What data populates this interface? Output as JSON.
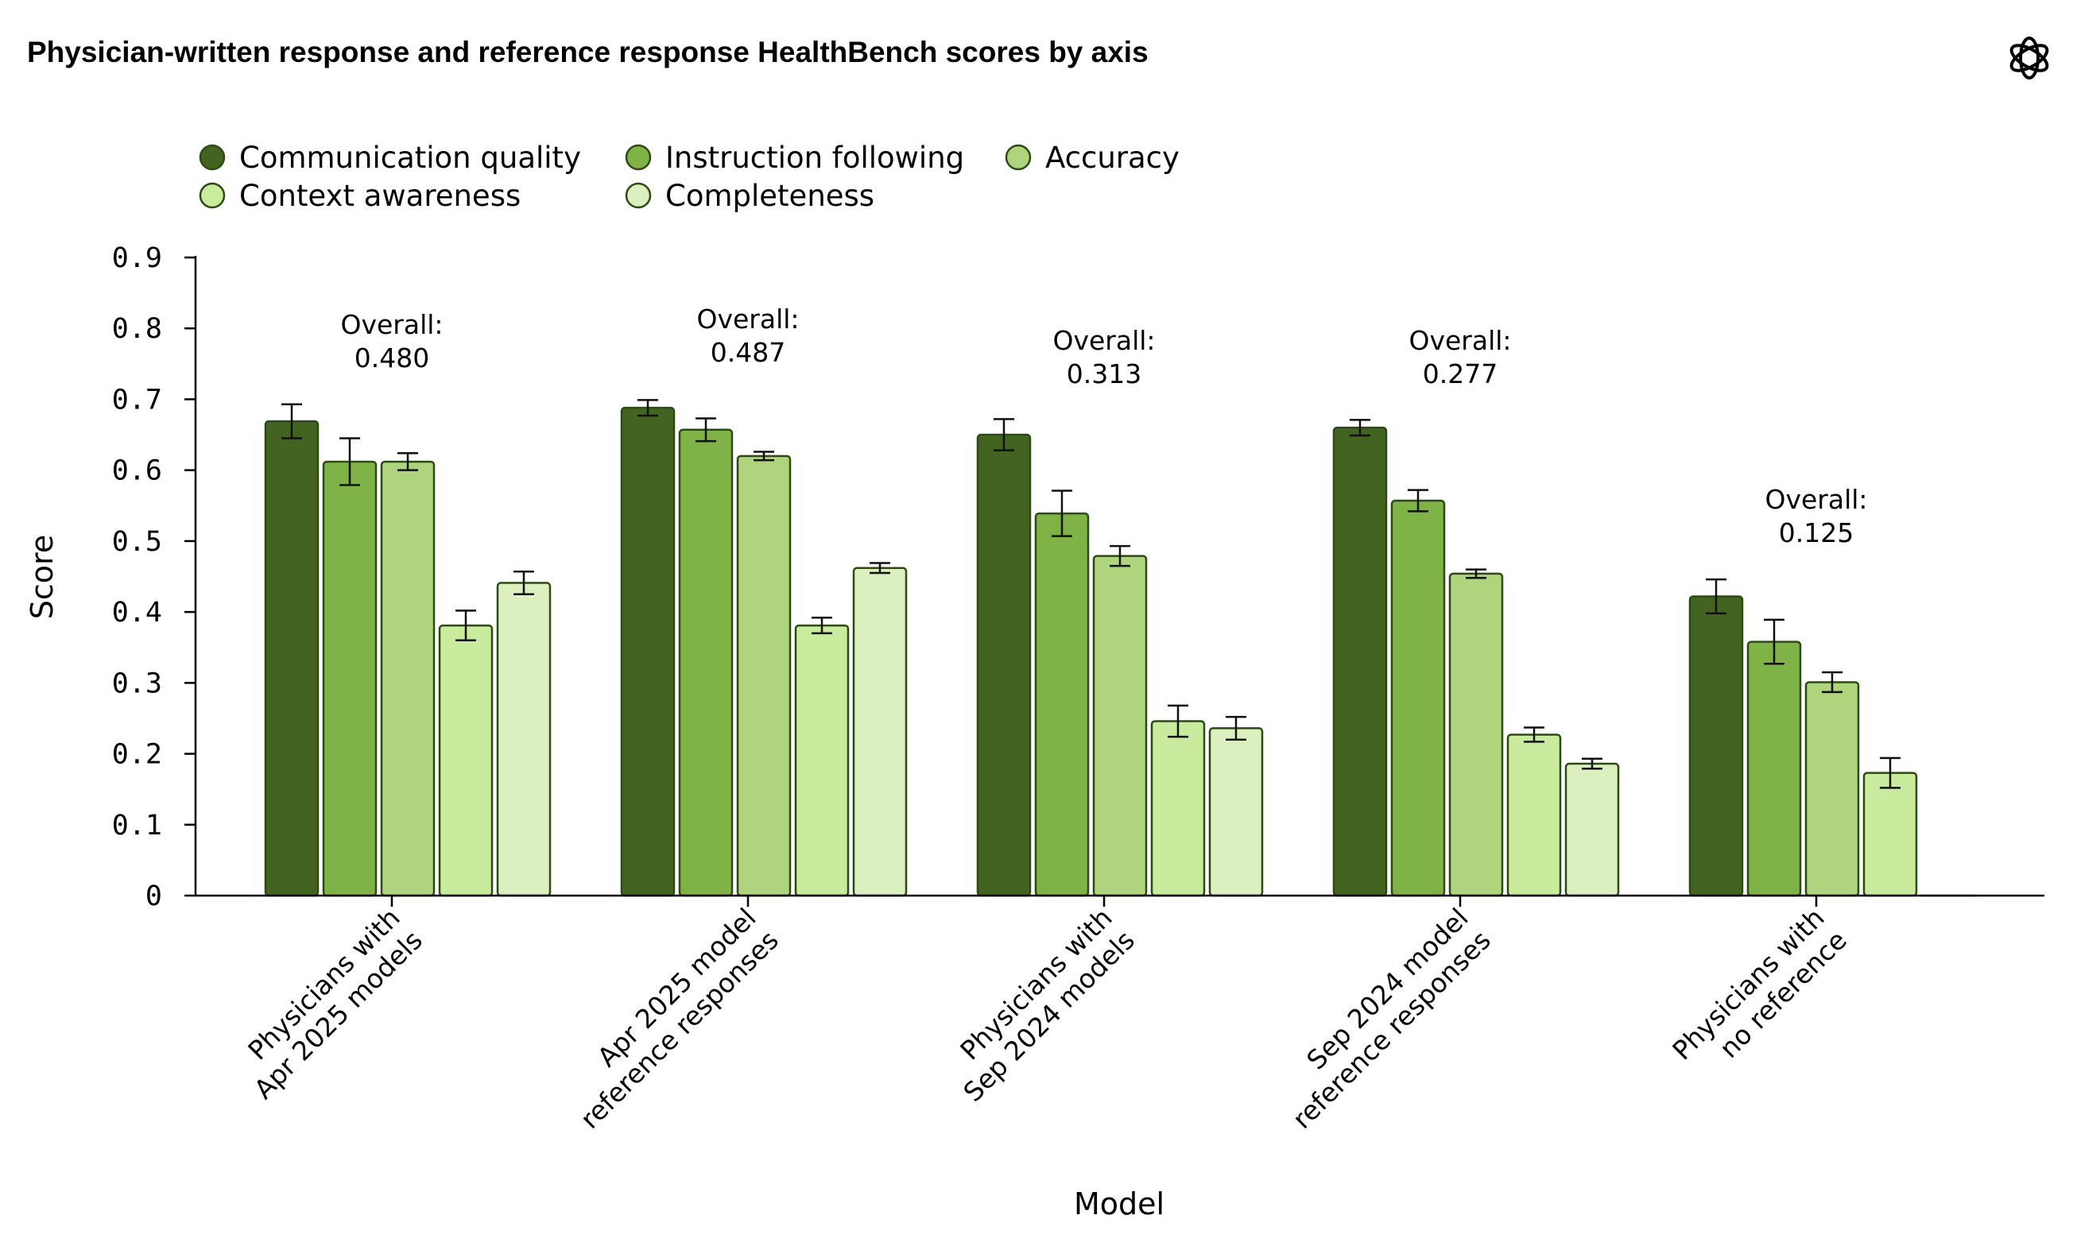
{
  "chart_data": {
    "type": "bar",
    "title": "Physician-written response and reference response HealthBench scores by axis",
    "xlabel": "Model",
    "ylabel": "Score",
    "ylim": [
      0,
      0.9
    ],
    "yticks": [
      "0",
      "0.1",
      "0.2",
      "0.3",
      "0.4",
      "0.5",
      "0.6",
      "0.7",
      "0.8",
      "0.9"
    ],
    "legend_position": "top-left",
    "overall_label": "Overall:",
    "categories": [
      [
        "Physicians with",
        "Apr 2025 models"
      ],
      [
        "Apr 2025 model",
        "reference responses"
      ],
      [
        "Physicians with",
        "Sep 2024 models"
      ],
      [
        "Sep 2024 model",
        "reference responses"
      ],
      [
        "Physicians with",
        "no reference"
      ]
    ],
    "overall": [
      "0.480",
      "0.487",
      "0.313",
      "0.277",
      "0.125"
    ],
    "series": [
      {
        "name": "Communication quality",
        "color": "#436421",
        "values": [
          0.669,
          0.688,
          0.65,
          0.66,
          0.422
        ],
        "err": [
          0.024,
          0.011,
          0.022,
          0.011,
          0.024
        ]
      },
      {
        "name": "Instruction following",
        "color": "#7fb247",
        "values": [
          0.612,
          0.657,
          0.539,
          0.557,
          0.358
        ],
        "err": [
          0.033,
          0.016,
          0.032,
          0.015,
          0.031
        ]
      },
      {
        "name": "Accuracy",
        "color": "#afd47e",
        "values": [
          0.612,
          0.62,
          0.479,
          0.454,
          0.301
        ],
        "err": [
          0.012,
          0.006,
          0.014,
          0.006,
          0.014
        ]
      },
      {
        "name": "Context awareness",
        "color": "#c8eb9d",
        "values": [
          0.381,
          0.381,
          0.246,
          0.227,
          0.173
        ],
        "err": [
          0.021,
          0.011,
          0.022,
          0.01,
          0.021
        ]
      },
      {
        "name": "Completeness",
        "color": "#dcefbe",
        "values": [
          0.441,
          0.462,
          0.236,
          0.186,
          0.0
        ],
        "err": [
          0.016,
          0.007,
          0.016,
          0.007,
          0.0
        ]
      }
    ]
  },
  "icons": {
    "logo": "openai-logo-icon"
  }
}
